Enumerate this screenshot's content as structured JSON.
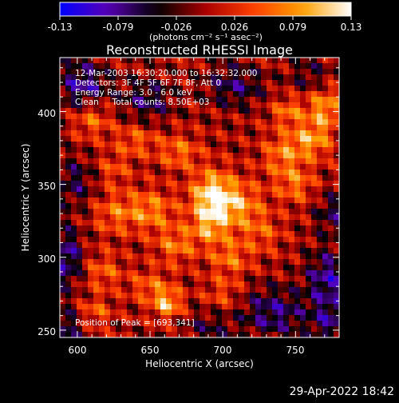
{
  "colorbar": {
    "ticks": [
      "-0.13",
      "-0.079",
      "-0.026",
      "0.026",
      "0.079",
      "0.13"
    ],
    "unit_label": "(photons cm⁻² s⁻¹ asec⁻²)"
  },
  "title": "Reconstructed RHESSI Image",
  "annotations": {
    "time": "12-Mar-2003 16:30:20.000 to 16:32:32.000",
    "detectors": "Detectors: 3F 4F 5F 6F 7F 8F, Att 0",
    "energy": "Energy Range: 3.0 - 6.0 keV",
    "clean": "Clean     Total counts: 8.50E+03",
    "peak": "Position of Peak = [693,341]"
  },
  "timestamp": "29-Apr-2022 18:42",
  "chart_data": {
    "type": "heatmap",
    "title": "Reconstructed RHESSI Image",
    "xlabel": "Heliocentric X (arcsec)",
    "ylabel": "Heliocentric Y (arcsec)",
    "xlim": [
      588,
      780
    ],
    "ylim": [
      245,
      437
    ],
    "x_ticks": [
      "600",
      "650",
      "700",
      "750"
    ],
    "y_ticks": [
      "250",
      "300",
      "350",
      "400"
    ],
    "x_tick_values": [
      600,
      650,
      700,
      750
    ],
    "y_tick_values": [
      250,
      300,
      350,
      400
    ],
    "colorbar_range": [
      -0.13,
      0.13
    ],
    "colormap": [
      "#0000ff",
      "#5a00b4",
      "#000000",
      "#aa0000",
      "#ff4000",
      "#ffa000",
      "#ffffff"
    ],
    "peak": {
      "x": 693,
      "y": 341
    },
    "blobs": [
      {
        "x": 693,
        "y": 341,
        "amp": 0.13,
        "sx": 10,
        "sy": 12
      },
      {
        "x": 712,
        "y": 335,
        "amp": 0.07,
        "sx": 12,
        "sy": 12
      },
      {
        "x": 750,
        "y": 350,
        "amp": 0.06,
        "sx": 9,
        "sy": 9
      },
      {
        "x": 740,
        "y": 370,
        "amp": 0.06,
        "sx": 9,
        "sy": 10
      },
      {
        "x": 760,
        "y": 380,
        "amp": 0.08,
        "sx": 10,
        "sy": 9
      },
      {
        "x": 770,
        "y": 402,
        "amp": 0.08,
        "sx": 8,
        "sy": 10
      },
      {
        "x": 745,
        "y": 400,
        "amp": 0.06,
        "sx": 8,
        "sy": 7
      },
      {
        "x": 610,
        "y": 395,
        "amp": 0.06,
        "sx": 9,
        "sy": 9
      },
      {
        "x": 640,
        "y": 380,
        "amp": 0.05,
        "sx": 10,
        "sy": 8
      },
      {
        "x": 670,
        "y": 372,
        "amp": 0.06,
        "sx": 10,
        "sy": 8
      },
      {
        "x": 650,
        "y": 332,
        "amp": 0.07,
        "sx": 12,
        "sy": 10
      },
      {
        "x": 625,
        "y": 330,
        "amp": 0.05,
        "sx": 10,
        "sy": 10
      },
      {
        "x": 668,
        "y": 308,
        "amp": 0.06,
        "sx": 10,
        "sy": 9
      },
      {
        "x": 705,
        "y": 300,
        "amp": 0.06,
        "sx": 10,
        "sy": 9
      },
      {
        "x": 690,
        "y": 320,
        "amp": 0.06,
        "sx": 9,
        "sy": 8
      },
      {
        "x": 728,
        "y": 316,
        "amp": 0.04,
        "sx": 9,
        "sy": 9
      },
      {
        "x": 650,
        "y": 280,
        "amp": 0.05,
        "sx": 10,
        "sy": 8
      },
      {
        "x": 618,
        "y": 290,
        "amp": 0.05,
        "sx": 9,
        "sy": 9
      },
      {
        "x": 662,
        "y": 268,
        "amp": 0.09,
        "sx": 7,
        "sy": 7
      },
      {
        "x": 612,
        "y": 262,
        "amp": 0.05,
        "sx": 8,
        "sy": 7
      },
      {
        "x": 700,
        "y": 275,
        "amp": 0.04,
        "sx": 9,
        "sy": 8
      },
      {
        "x": 625,
        "y": 360,
        "amp": 0.04,
        "sx": 8,
        "sy": 8
      },
      {
        "x": 604,
        "y": 418,
        "amp": -0.08,
        "sx": 12,
        "sy": 12
      },
      {
        "x": 648,
        "y": 408,
        "amp": -0.06,
        "sx": 12,
        "sy": 10
      },
      {
        "x": 708,
        "y": 418,
        "amp": -0.06,
        "sx": 14,
        "sy": 10
      },
      {
        "x": 598,
        "y": 352,
        "amp": -0.05,
        "sx": 10,
        "sy": 12
      },
      {
        "x": 592,
        "y": 300,
        "amp": -0.08,
        "sx": 8,
        "sy": 14
      },
      {
        "x": 590,
        "y": 252,
        "amp": -0.06,
        "sx": 10,
        "sy": 10
      },
      {
        "x": 735,
        "y": 262,
        "amp": -0.07,
        "sx": 16,
        "sy": 12
      },
      {
        "x": 772,
        "y": 285,
        "amp": -0.08,
        "sx": 10,
        "sy": 14
      },
      {
        "x": 775,
        "y": 255,
        "amp": -0.06,
        "sx": 10,
        "sy": 10
      },
      {
        "x": 775,
        "y": 330,
        "amp": -0.05,
        "sx": 8,
        "sy": 10
      },
      {
        "x": 690,
        "y": 252,
        "amp": -0.04,
        "sx": 12,
        "sy": 8
      },
      {
        "x": 760,
        "y": 425,
        "amp": -0.04,
        "sx": 10,
        "sy": 8
      }
    ]
  }
}
